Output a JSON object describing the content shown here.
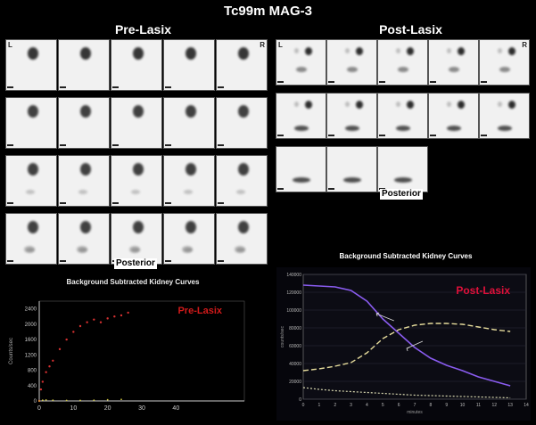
{
  "header": {
    "title": "Tc99m MAG-3",
    "pre_label": "Pre-Lasix",
    "post_label": "Post-Lasix"
  },
  "image_labels": {
    "left": "L",
    "right": "R",
    "posterior": "Posterior"
  },
  "pre_chart": {
    "title": "Background Subtracted Kidney Curves",
    "legend": "Pre-Lasix",
    "legend_color": "#d11a1a"
  },
  "post_chart": {
    "title": "Background Subtracted Kidney Curves",
    "legend": "Post-Lasix",
    "legend_color": "#e0103a"
  },
  "chart_data": [
    {
      "type": "line",
      "title": "Background Subtracted Kidney Curves",
      "xlabel": "",
      "ylabel": "Counts/sec",
      "xlim": [
        0,
        60
      ],
      "ylim": [
        0,
        2600
      ],
      "x_ticks": [
        "0",
        "10",
        "20",
        "30",
        "40"
      ],
      "y_ticks": [
        "0",
        "400",
        "800",
        "1200",
        "1600",
        "2000",
        "2400"
      ],
      "legend": "Pre-Lasix",
      "series": [
        {
          "name": "",
          "color": "#d43030",
          "x": [
            0,
            0.5,
            1,
            2,
            3,
            4,
            6,
            8,
            10,
            12,
            14,
            16,
            18,
            20,
            22,
            24,
            26
          ],
          "y": [
            0,
            300,
            500,
            750,
            900,
            1050,
            1350,
            1600,
            1800,
            1950,
            2050,
            2120,
            2050,
            2150,
            2200,
            2230,
            2300
          ]
        },
        {
          "name": "",
          "color": "#c8c040",
          "x": [
            0,
            1,
            2,
            4,
            8,
            12,
            16,
            20,
            24
          ],
          "y": [
            0,
            20,
            25,
            20,
            15,
            15,
            20,
            30,
            40
          ]
        }
      ]
    },
    {
      "type": "line",
      "title": "Background Subtracted Kidney Curves",
      "xlabel": "minutes",
      "ylabel": "counts/sec",
      "xlim": [
        0,
        14
      ],
      "ylim": [
        0,
        140000
      ],
      "x_ticks": [
        "0",
        "1",
        "2",
        "3",
        "4",
        "5",
        "6",
        "7",
        "8",
        "9",
        "10",
        "11",
        "12",
        "13",
        "14"
      ],
      "y_ticks": [
        "0",
        "20000",
        "40000",
        "60000",
        "80000",
        "100000",
        "120000",
        "140000"
      ],
      "legend": "Post-Lasix",
      "series": [
        {
          "name": "",
          "color": "#8a5cf0",
          "x": [
            0,
            1,
            2,
            3,
            4,
            5,
            6,
            7,
            8,
            9,
            10,
            11,
            12,
            13
          ],
          "y": [
            128000,
            127000,
            126000,
            122000,
            110000,
            90000,
            74000,
            58000,
            46000,
            38000,
            32000,
            25000,
            20000,
            15000
          ]
        },
        {
          "name": "",
          "color": "#e6dc9c",
          "x": [
            0,
            1,
            2,
            3,
            4,
            5,
            6,
            7,
            8,
            9,
            10,
            11,
            12,
            13
          ],
          "y": [
            32000,
            34000,
            37000,
            41000,
            52000,
            68000,
            78000,
            83000,
            85000,
            85000,
            84000,
            81000,
            78000,
            76000
          ]
        },
        {
          "name": "",
          "color": "#d8d8b0",
          "x": [
            0,
            1,
            2,
            3,
            4,
            5,
            6,
            7,
            8,
            9,
            10,
            11,
            12,
            13
          ],
          "y": [
            13000,
            11000,
            9500,
            8500,
            7500,
            6500,
            5500,
            4500,
            4000,
            3500,
            3000,
            2500,
            2000,
            1500
          ]
        }
      ]
    }
  ]
}
